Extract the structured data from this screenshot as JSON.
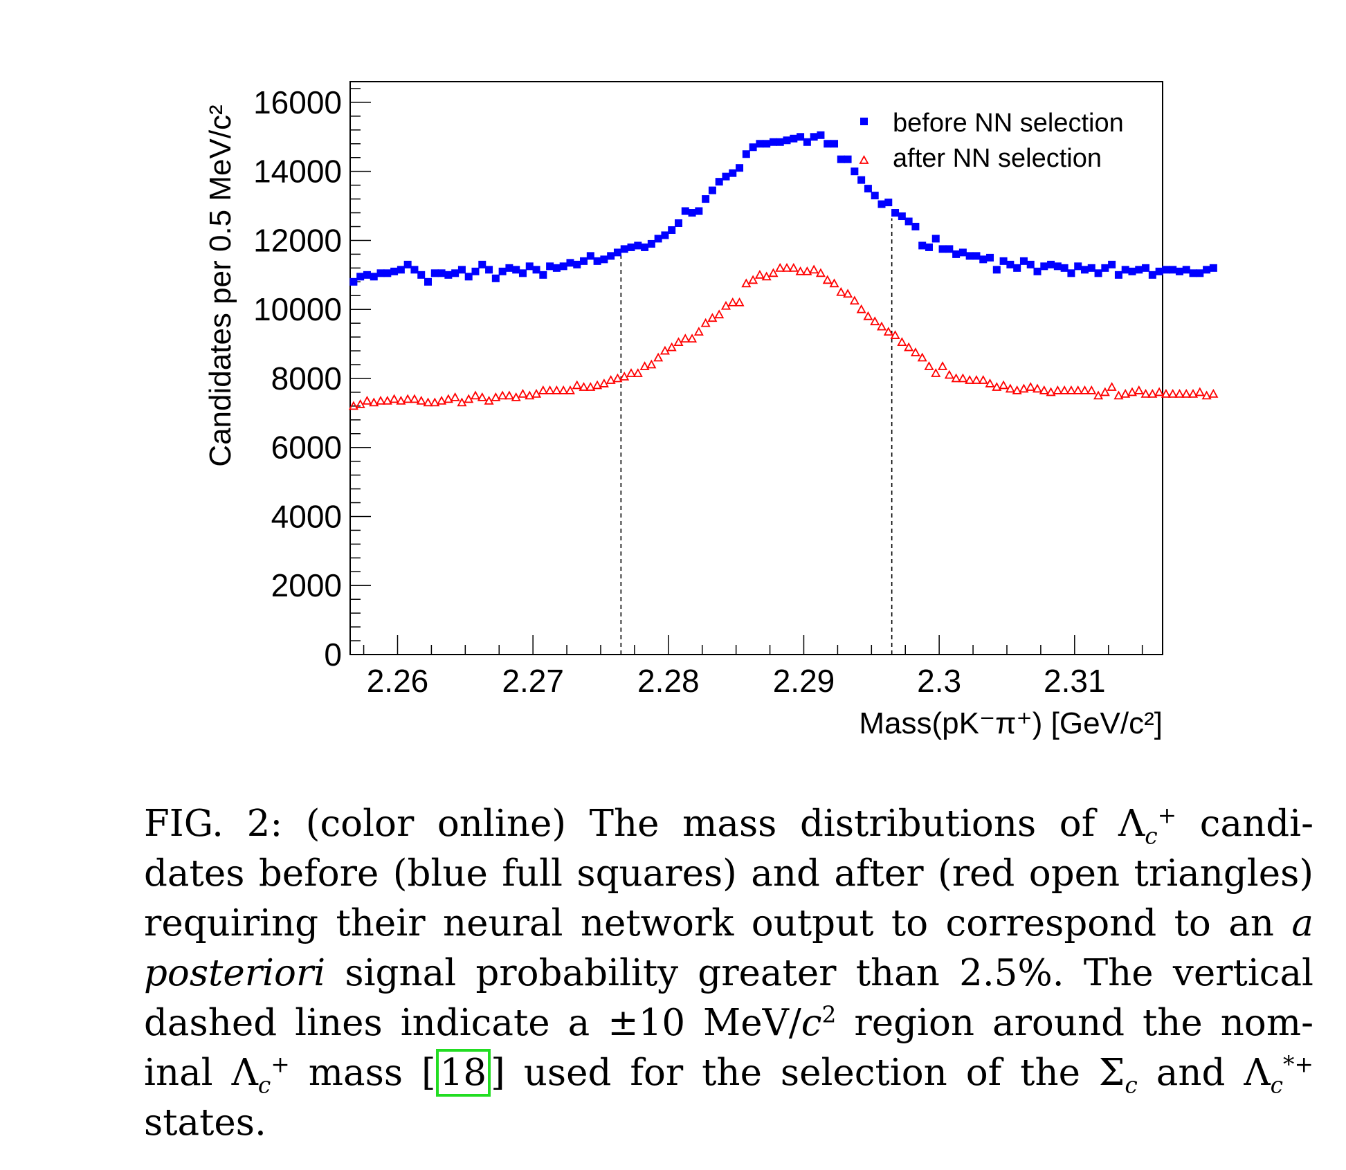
{
  "chart_data": {
    "type": "scatter",
    "xlabel": "Mass(pK⁻π⁺) [GeV/c²]",
    "ylabel": "Candidates per 0.5 MeV/c²",
    "xlim": [
      2.2565,
      2.3165
    ],
    "ylim": [
      0,
      16600
    ],
    "x_ticks": [
      2.26,
      2.27,
      2.28,
      2.29,
      2.3,
      2.31
    ],
    "x_tick_labels": [
      "2.26",
      "2.27",
      "2.28",
      "2.29",
      "2.3",
      "2.31"
    ],
    "y_ticks": [
      0,
      2000,
      4000,
      6000,
      8000,
      10000,
      12000,
      14000,
      16000
    ],
    "y_tick_labels": [
      "0",
      "2000",
      "4000",
      "6000",
      "8000",
      "10000",
      "12000",
      "14000",
      "16000"
    ],
    "grid": false,
    "legend_position": "top-right",
    "vertical_dashed_lines": [
      2.2765,
      2.2965
    ],
    "series": [
      {
        "name": "before NN selection",
        "marker": "filled-square",
        "color": "#0000ff",
        "x_start": 2.25675,
        "x_step": 0.0005,
        "values": [
          10800,
          10950,
          11000,
          10950,
          11050,
          11050,
          11100,
          11150,
          11300,
          11150,
          11000,
          10800,
          11050,
          11050,
          11000,
          11050,
          11150,
          10950,
          11100,
          11300,
          11150,
          10900,
          11100,
          11200,
          11150,
          11050,
          11250,
          11150,
          11000,
          11250,
          11200,
          11250,
          11350,
          11300,
          11400,
          11550,
          11400,
          11450,
          11550,
          11650,
          11750,
          11800,
          11850,
          11800,
          11900,
          12050,
          12150,
          12300,
          12500,
          12850,
          12800,
          12850,
          13200,
          13450,
          13700,
          13850,
          13950,
          14100,
          14500,
          14700,
          14800,
          14800,
          14850,
          14850,
          14900,
          14950,
          15000,
          14850,
          15000,
          15050,
          14800,
          14800,
          14350,
          14350,
          14000,
          13750,
          13500,
          13300,
          13050,
          13100,
          12800,
          12700,
          12550,
          12400,
          11850,
          11800,
          12050,
          11750,
          11750,
          11600,
          11650,
          11550,
          11550,
          11450,
          11500,
          11150,
          11400,
          11300,
          11200,
          11400,
          11300,
          11100,
          11250,
          11300,
          11250,
          11200,
          11050,
          11250,
          11150,
          11200,
          11050,
          11200,
          11300,
          11000,
          11150,
          11100,
          11150,
          11200,
          11000,
          11100,
          11150,
          11150,
          11100,
          11150,
          11050,
          11050,
          11150,
          11200
        ]
      },
      {
        "name": "after NN selection",
        "marker": "open-triangle",
        "color": "#ff0000",
        "x_start": 2.25675,
        "x_step": 0.0005,
        "values": [
          7200,
          7250,
          7350,
          7300,
          7350,
          7350,
          7400,
          7350,
          7400,
          7400,
          7350,
          7300,
          7300,
          7350,
          7400,
          7450,
          7300,
          7400,
          7500,
          7450,
          7350,
          7450,
          7500,
          7500,
          7450,
          7550,
          7500,
          7550,
          7650,
          7650,
          7650,
          7650,
          7650,
          7800,
          7750,
          7750,
          7800,
          7850,
          7950,
          8000,
          8050,
          8150,
          8150,
          8350,
          8400,
          8600,
          8800,
          8900,
          9050,
          9150,
          9150,
          9350,
          9600,
          9750,
          9850,
          10100,
          10200,
          10200,
          10750,
          10850,
          11000,
          10950,
          11050,
          11200,
          11200,
          11200,
          11100,
          11100,
          11150,
          11050,
          10850,
          10750,
          10500,
          10450,
          10250,
          10000,
          9800,
          9650,
          9500,
          9350,
          9250,
          9050,
          8900,
          8750,
          8600,
          8350,
          8150,
          8350,
          8100,
          8000,
          8000,
          7950,
          7950,
          7950,
          7850,
          7750,
          7800,
          7700,
          7650,
          7700,
          7750,
          7700,
          7650,
          7600,
          7650,
          7650,
          7650,
          7650,
          7650,
          7650,
          7500,
          7600,
          7750,
          7500,
          7550,
          7600,
          7650,
          7550,
          7550,
          7600,
          7550,
          7550,
          7550,
          7550,
          7550,
          7600,
          7500,
          7550
        ]
      }
    ]
  },
  "caption": {
    "lines": [
      [
        "FIG. 2: (color online) The mass distributions of ",
        "Λ",
        "c",
        "+",
        " candi-"
      ],
      [
        "dates before (blue full squares) and after (red open triangles)"
      ],
      [
        "requiring their neural network output to correspond to an ",
        "a"
      ],
      [
        "posteriori",
        " signal probability greater than 2.5%. The vertical"
      ],
      [
        "dashed lines indicate a ±10 MeV/",
        "c",
        "2",
        " region around the nom-"
      ],
      [
        "inal ",
        "Λ",
        "c",
        "+",
        " mass [",
        "18",
        "] used for the selection of the Σ",
        "c",
        " and Λ",
        "c",
        "*+"
      ],
      [
        "states."
      ]
    ]
  }
}
